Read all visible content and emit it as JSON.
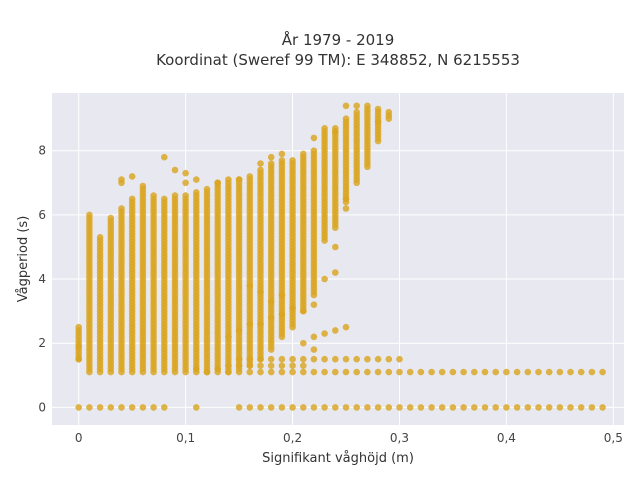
{
  "chart_data": {
    "type": "scatter",
    "title": [
      "År 1979 - 2019",
      "Koordinat (Sweref 99 TM): E 348852, N 6215553"
    ],
    "xlabel": "Signifikant våghöjd (m)",
    "ylabel": "Vågperiod (s)",
    "xlim": [
      -0.025,
      0.51
    ],
    "ylim": [
      -0.55,
      9.8
    ],
    "xticks": [
      0,
      0.1,
      0.2,
      0.3,
      0.4,
      0.5
    ],
    "xtick_labels": [
      "0",
      "0,1",
      "0,2",
      "0,3",
      "0,4",
      "0,5"
    ],
    "yticks": [
      0,
      2,
      4,
      6,
      8
    ],
    "ytick_labels": [
      "0",
      "2",
      "4",
      "6",
      "8"
    ],
    "grid": true,
    "background": "#e8e8f0",
    "point_color": "#d9a520",
    "hs_step": 0.01,
    "zero_period_hs": [
      0,
      0.01,
      0.02,
      0.03,
      0.04,
      0.05,
      0.06,
      0.07,
      0.08,
      0.11,
      0.15,
      0.16,
      0.17,
      0.18,
      0.19,
      0.2,
      0.21,
      0.22,
      0.23,
      0.24,
      0.25,
      0.26,
      0.27,
      0.28,
      0.29,
      0.3,
      0.31,
      0.32,
      0.33,
      0.34,
      0.35,
      0.36,
      0.37,
      0.38,
      0.39,
      0.4,
      0.41,
      0.42,
      0.43,
      0.44,
      0.45,
      0.46,
      0.47,
      0.48,
      0.49
    ],
    "bands": [
      {
        "hs": 0,
        "tmin": 1.5,
        "tmax": 2.5
      },
      {
        "hs": 0.01,
        "tmin": 1.1,
        "tmax": 6.0
      },
      {
        "hs": 0.02,
        "tmin": 1.1,
        "tmax": 5.3
      },
      {
        "hs": 0.03,
        "tmin": 1.1,
        "tmax": 5.9
      },
      {
        "hs": 0.04,
        "tmin": 1.1,
        "tmax": 6.2
      },
      {
        "hs": 0.05,
        "tmin": 1.1,
        "tmax": 6.5
      },
      {
        "hs": 0.06,
        "tmin": 1.1,
        "tmax": 6.9
      },
      {
        "hs": 0.07,
        "tmin": 1.1,
        "tmax": 6.6
      },
      {
        "hs": 0.08,
        "tmin": 1.1,
        "tmax": 6.5
      },
      {
        "hs": 0.09,
        "tmin": 1.1,
        "tmax": 6.6
      },
      {
        "hs": 0.1,
        "tmin": 1.1,
        "tmax": 6.6
      },
      {
        "hs": 0.11,
        "tmin": 1.1,
        "tmax": 6.7
      },
      {
        "hs": 0.12,
        "tmin": 1.1,
        "tmax": 6.8
      },
      {
        "hs": 0.13,
        "tmin": 1.1,
        "tmax": 7.0
      },
      {
        "hs": 0.14,
        "tmin": 1.1,
        "tmax": 7.1
      },
      {
        "hs": 0.15,
        "tmin": 1.2,
        "tmax": 7.1
      },
      {
        "hs": 0.16,
        "tmin": 1.3,
        "tmax": 7.2
      },
      {
        "hs": 0.17,
        "tmin": 1.5,
        "tmax": 7.4
      },
      {
        "hs": 0.18,
        "tmin": 1.8,
        "tmax": 7.6
      },
      {
        "hs": 0.19,
        "tmin": 2.2,
        "tmax": 7.7
      },
      {
        "hs": 0.2,
        "tmin": 2.5,
        "tmax": 7.7
      },
      {
        "hs": 0.21,
        "tmin": 3.0,
        "tmax": 7.8
      },
      {
        "hs": 0.22,
        "tmin": 3.5,
        "tmax": 8.0
      },
      {
        "hs": 0.23,
        "tmin": 5.2,
        "tmax": 8.6
      },
      {
        "hs": 0.24,
        "tmin": 5.6,
        "tmax": 8.7
      },
      {
        "hs": 0.25,
        "tmin": 6.4,
        "tmax": 9.0
      },
      {
        "hs": 0.26,
        "tmin": 7.0,
        "tmax": 9.2
      },
      {
        "hs": 0.27,
        "tmin": 7.5,
        "tmax": 9.3
      },
      {
        "hs": 0.28,
        "tmin": 8.3,
        "tmax": 9.2
      },
      {
        "hs": 0.29,
        "tmin": 9.0,
        "tmax": 9.2
      }
    ],
    "extra_points": [
      [
        0,
        1.5
      ],
      [
        0,
        1.9
      ],
      [
        0.04,
        7.1
      ],
      [
        0.05,
        7.2
      ],
      [
        0.04,
        7.0
      ],
      [
        0.08,
        7.8
      ],
      [
        0.09,
        7.4
      ],
      [
        0.1,
        7.3
      ],
      [
        0.1,
        7.0
      ],
      [
        0.11,
        7.1
      ],
      [
        0.13,
        7.0
      ],
      [
        0.15,
        7.1
      ],
      [
        0.17,
        7.6
      ],
      [
        0.18,
        7.8
      ],
      [
        0.19,
        7.9
      ],
      [
        0.21,
        7.9
      ],
      [
        0.22,
        8.4
      ],
      [
        0.23,
        8.7
      ],
      [
        0.24,
        8.6
      ],
      [
        0.25,
        9.4
      ],
      [
        0.26,
        9.4
      ],
      [
        0.27,
        9.4
      ],
      [
        0.28,
        9.3
      ],
      [
        0.28,
        8.9
      ],
      [
        0.2,
        3.1
      ],
      [
        0.21,
        3.0
      ],
      [
        0.22,
        3.2
      ],
      [
        0.19,
        2.9
      ],
      [
        0.18,
        2.8
      ],
      [
        0.17,
        2.6
      ],
      [
        0.16,
        2.6
      ],
      [
        0.15,
        2.4
      ],
      [
        0.14,
        2.2
      ],
      [
        0.18,
        3.3
      ],
      [
        0.19,
        3.5
      ],
      [
        0.17,
        3.6
      ],
      [
        0.16,
        3.8
      ],
      [
        0.22,
        2.2
      ],
      [
        0.23,
        2.3
      ],
      [
        0.24,
        2.4
      ],
      [
        0.25,
        2.5
      ],
      [
        0.21,
        2.0
      ],
      [
        0.22,
        1.8
      ],
      [
        0.12,
        1.1
      ],
      [
        0.13,
        1.2
      ],
      [
        0.11,
        1.2
      ],
      [
        0.23,
        4.0
      ],
      [
        0.24,
        4.2
      ],
      [
        0.24,
        5.0
      ],
      [
        0.25,
        6.2
      ],
      [
        0.25,
        6.5
      ]
    ],
    "lines": [
      {
        "t": 1.1,
        "hs_from": 0.14,
        "hs_to": 0.49
      },
      {
        "t": 1.5,
        "hs_from": 0.15,
        "hs_to": 0.3
      },
      {
        "t": 1.3,
        "hs_from": 0.14,
        "hs_to": 0.21
      }
    ]
  }
}
